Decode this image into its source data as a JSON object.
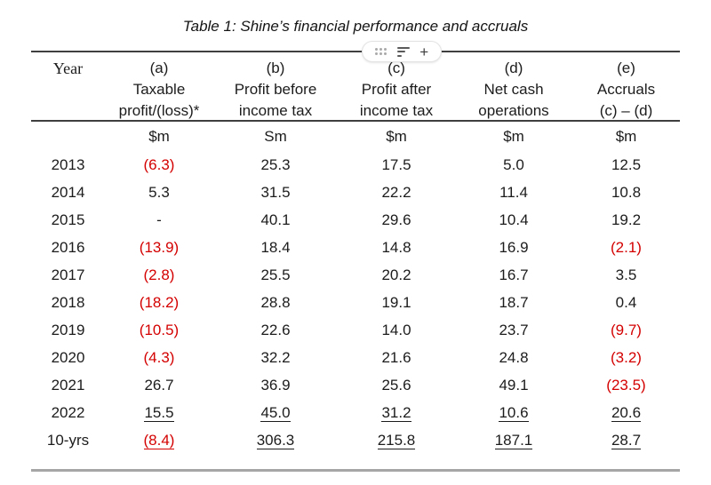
{
  "title": "Table 1: Shine’s financial performance and accruals",
  "colors": {
    "negative": "#d40000",
    "rule_dark": "#3f3f3f",
    "rule_gray": "#a6a6a6"
  },
  "toolbar": {
    "icons": [
      "drag-handle-icon",
      "sort-lines-icon",
      "plus-icon"
    ],
    "plus_glyph": "+"
  },
  "table": {
    "year_header": "Year",
    "columns": [
      {
        "label": "(a)",
        "line2": "Taxable",
        "line3": "profit/(loss)*",
        "unit": "$m"
      },
      {
        "label": "(b)",
        "line2": "Profit before",
        "line3": "income tax",
        "unit": "Sm"
      },
      {
        "label": "(c)",
        "line2": "Profit after",
        "line3": "income tax",
        "unit": "$m"
      },
      {
        "label": "(d)",
        "line2": "Net cash",
        "line3": "operations",
        "unit": "$m"
      },
      {
        "label": "(e)",
        "line2": "Accruals",
        "line3": "(c) – (d)",
        "unit": "$m"
      }
    ],
    "rows": [
      {
        "year": "2013",
        "values": [
          {
            "t": "(6.3)",
            "neg": true
          },
          {
            "t": "25.3"
          },
          {
            "t": "17.5"
          },
          {
            "t": "5.0"
          },
          {
            "t": "12.5"
          }
        ]
      },
      {
        "year": "2014",
        "values": [
          {
            "t": "5.3"
          },
          {
            "t": "31.5"
          },
          {
            "t": "22.2"
          },
          {
            "t": "11.4"
          },
          {
            "t": "10.8"
          }
        ]
      },
      {
        "year": "2015",
        "values": [
          {
            "t": "-"
          },
          {
            "t": "40.1"
          },
          {
            "t": "29.6"
          },
          {
            "t": "10.4"
          },
          {
            "t": "19.2"
          }
        ]
      },
      {
        "year": "2016",
        "values": [
          {
            "t": "(13.9)",
            "neg": true
          },
          {
            "t": "18.4"
          },
          {
            "t": "14.8"
          },
          {
            "t": "16.9"
          },
          {
            "t": "(2.1)",
            "neg": true
          }
        ]
      },
      {
        "year": "2017",
        "values": [
          {
            "t": "(2.8)",
            "neg": true
          },
          {
            "t": "25.5"
          },
          {
            "t": "20.2"
          },
          {
            "t": "16.7"
          },
          {
            "t": "3.5"
          }
        ]
      },
      {
        "year": "2018",
        "values": [
          {
            "t": "(18.2)",
            "neg": true
          },
          {
            "t": "28.8"
          },
          {
            "t": "19.1"
          },
          {
            "t": "18.7"
          },
          {
            "t": "0.4"
          }
        ]
      },
      {
        "year": "2019",
        "values": [
          {
            "t": "(10.5)",
            "neg": true
          },
          {
            "t": "22.6"
          },
          {
            "t": "14.0"
          },
          {
            "t": "23.7"
          },
          {
            "t": "(9.7)",
            "neg": true
          }
        ]
      },
      {
        "year": "2020",
        "values": [
          {
            "t": "(4.3)",
            "neg": true
          },
          {
            "t": "32.2"
          },
          {
            "t": "21.6"
          },
          {
            "t": "24.8"
          },
          {
            "t": "(3.2)",
            "neg": true
          }
        ]
      },
      {
        "year": "2021",
        "values": [
          {
            "t": "26.7"
          },
          {
            "t": "36.9"
          },
          {
            "t": "25.6"
          },
          {
            "t": "49.1"
          },
          {
            "t": "(23.5)",
            "neg": true
          }
        ]
      },
      {
        "year": "2022",
        "values": [
          {
            "t": "15.5",
            "ul": true
          },
          {
            "t": "45.0",
            "ul": true
          },
          {
            "t": "31.2",
            "ul": true
          },
          {
            "t": "10.6",
            "ul": true
          },
          {
            "t": "20.6",
            "ul": true
          }
        ]
      },
      {
        "year": "10-yrs",
        "values": [
          {
            "t": "(8.4)",
            "neg": true,
            "ul": true
          },
          {
            "t": "306.3",
            "ul": true
          },
          {
            "t": "215.8",
            "ul": true
          },
          {
            "t": "187.1",
            "ul": true
          },
          {
            "t": "28.7",
            "ul": true
          }
        ]
      }
    ]
  }
}
